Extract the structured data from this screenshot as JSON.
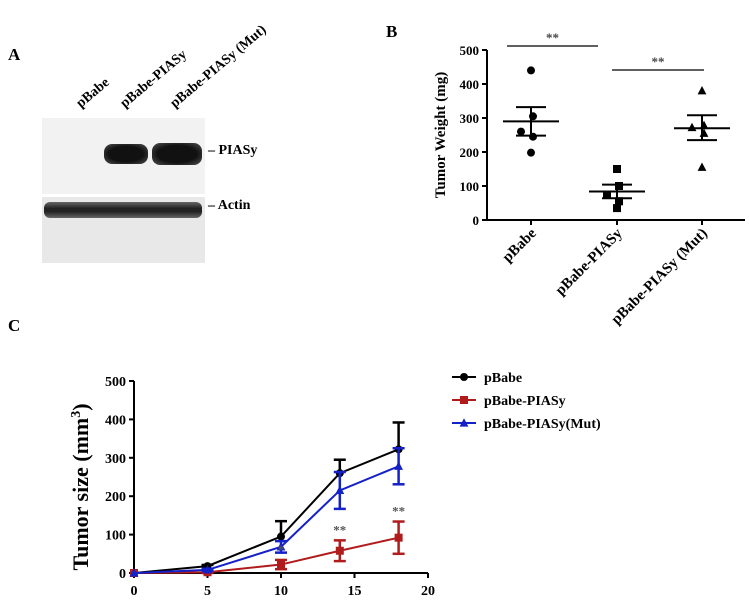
{
  "panels": {
    "a": {
      "label": "A",
      "lanes": [
        "pBabe",
        "pBabe-PIASy",
        "pBabe-PIASy (Mut)"
      ],
      "bands": [
        "PIASy",
        "Actin"
      ]
    },
    "b": {
      "label": "B"
    },
    "c": {
      "label": "C"
    }
  },
  "chart_data": [
    {
      "type": "scatter",
      "panel": "B",
      "ylabel": "Tumor Weight (mg)",
      "ylim": [
        0,
        500
      ],
      "yticks": [
        0,
        100,
        200,
        300,
        400,
        500
      ],
      "categories": [
        "pBabe",
        "pBabe-PIASy",
        "pBabe-PIASy (Mut)"
      ],
      "markers": [
        "circle",
        "square",
        "triangle"
      ],
      "points": [
        [
          440,
          305,
          260,
          245,
          198
        ],
        [
          150,
          100,
          75,
          55,
          35
        ],
        [
          380,
          278,
          272,
          255,
          155
        ]
      ],
      "mean": [
        290,
        84,
        270
      ],
      "sem_low": [
        248,
        64,
        235
      ],
      "sem_high": [
        332,
        104,
        308
      ],
      "annotations": [
        {
          "text": "**",
          "from": "pBabe",
          "to": "pBabe-PIASy"
        },
        {
          "text": "**",
          "from": "pBabe-PIASy",
          "to": "pBabe-PIASy (Mut)"
        }
      ]
    },
    {
      "type": "line",
      "panel": "C",
      "ylabel": "Tumor size (mm",
      "ylabel_sup": "3",
      "ylabel_close": ")",
      "xlim": [
        0,
        20
      ],
      "ylim": [
        0,
        500
      ],
      "xticks": [
        0,
        5,
        10,
        15,
        20
      ],
      "yticks": [
        0,
        100,
        200,
        300,
        400,
        500
      ],
      "legend_position": "right",
      "x": [
        0,
        5,
        10,
        14,
        18
      ],
      "series": [
        {
          "name": "pBabe",
          "color": "#000000",
          "marker": "circle",
          "values": [
            0,
            18,
            95,
            260,
            322
          ],
          "err": [
            0,
            3,
            40,
            35,
            70
          ]
        },
        {
          "name": "pBabe-PIASy",
          "color": "#b01c1c",
          "marker": "square",
          "values": [
            0,
            2,
            22,
            58,
            92
          ],
          "err": [
            0,
            2,
            12,
            27,
            42
          ]
        },
        {
          "name": "pBabe-PIASy(Mut)",
          "color": "#1420c8",
          "marker": "triangle",
          "values": [
            0,
            8,
            68,
            215,
            278
          ],
          "err": [
            0,
            3,
            15,
            48,
            47
          ]
        }
      ],
      "annotations": [
        {
          "x": 10,
          "text": "*"
        },
        {
          "x": 14,
          "text": "**"
        },
        {
          "x": 18,
          "text": "**"
        }
      ]
    }
  ]
}
